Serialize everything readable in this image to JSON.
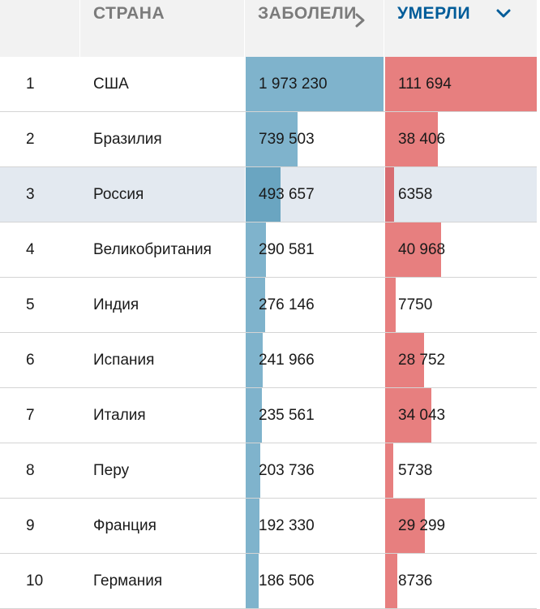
{
  "header": {
    "country_label": "СТРАНА",
    "cases_label": "ЗАБОЛЕЛИ",
    "deaths_label": "УМЕРЛИ"
  },
  "icons": {
    "cases_sort": "chevron-right-icon",
    "deaths_sort": "chevron-down-icon"
  },
  "colors": {
    "cases_bar": "#7fb3cc",
    "deaths_bar": "#e77f7f",
    "active_header": "#005c99",
    "highlight_row": "#e3e9f0"
  },
  "max": {
    "cases": 1973230,
    "deaths": 111694
  },
  "rows": [
    {
      "rank": "1",
      "country": "США",
      "cases": "1 973 230",
      "deaths": "111 694",
      "cases_value": 1973230,
      "deaths_value": 111694
    },
    {
      "rank": "2",
      "country": "Бразилия",
      "cases": "739 503",
      "deaths": "38 406",
      "cases_value": 739503,
      "deaths_value": 38406
    },
    {
      "rank": "3",
      "country": "Россия",
      "cases": "493 657",
      "deaths": "6358",
      "cases_value": 493657,
      "deaths_value": 6358,
      "highlighted": true
    },
    {
      "rank": "4",
      "country": "Великобритания",
      "cases": "290 581",
      "deaths": "40 968",
      "cases_value": 290581,
      "deaths_value": 40968
    },
    {
      "rank": "5",
      "country": "Индия",
      "cases": "276 146",
      "deaths": "7750",
      "cases_value": 276146,
      "deaths_value": 7750
    },
    {
      "rank": "6",
      "country": "Испания",
      "cases": "241 966",
      "deaths": "28 752",
      "cases_value": 241966,
      "deaths_value": 28752
    },
    {
      "rank": "7",
      "country": "Италия",
      "cases": "235 561",
      "deaths": "34 043",
      "cases_value": 235561,
      "deaths_value": 34043
    },
    {
      "rank": "8",
      "country": "Перу",
      "cases": "203 736",
      "deaths": "5738",
      "cases_value": 203736,
      "deaths_value": 5738
    },
    {
      "rank": "9",
      "country": "Франция",
      "cases": "192 330",
      "deaths": "29 299",
      "cases_value": 192330,
      "deaths_value": 29299
    },
    {
      "rank": "10",
      "country": "Германия",
      "cases": "186 506",
      "deaths": "8736",
      "cases_value": 186506,
      "deaths_value": 8736
    }
  ]
}
